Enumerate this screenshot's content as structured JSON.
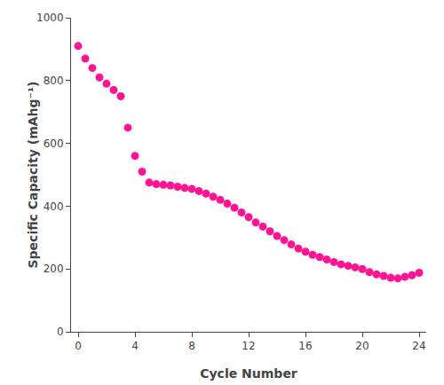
{
  "chart_data": {
    "type": "scatter",
    "x": [
      0,
      0.5,
      1,
      1.5,
      2,
      2.5,
      3,
      3.5,
      4,
      4.5,
      5,
      5.5,
      6,
      6.5,
      7,
      7.5,
      8,
      8.5,
      9,
      9.5,
      10,
      10.5,
      11,
      11.5,
      12,
      12.5,
      13,
      13.5,
      14,
      14.5,
      15,
      15.5,
      16,
      16.5,
      17,
      17.5,
      18,
      18.5,
      19,
      19.5,
      20,
      20.5,
      21,
      21.5,
      22,
      22.5,
      23,
      23.5,
      24
    ],
    "values": [
      910,
      870,
      840,
      810,
      790,
      770,
      750,
      650,
      560,
      510,
      475,
      470,
      468,
      466,
      462,
      458,
      455,
      448,
      440,
      430,
      420,
      408,
      395,
      380,
      365,
      348,
      335,
      320,
      305,
      292,
      278,
      265,
      255,
      245,
      238,
      230,
      222,
      215,
      210,
      205,
      200,
      190,
      183,
      178,
      172,
      170,
      175,
      180,
      188
    ],
    "color": "#FF1493",
    "marker": "circle",
    "xlabel": "Cycle Number",
    "ylabel": "Specific Capacity (mAhg⁻¹)",
    "xlim": [
      -0.5,
      24.5
    ],
    "ylim": [
      0,
      1000
    ],
    "xticks": [
      0,
      4,
      8,
      12,
      16,
      20,
      24
    ],
    "yticks": [
      0,
      200,
      400,
      600,
      800,
      1000
    ],
    "grid": false
  }
}
